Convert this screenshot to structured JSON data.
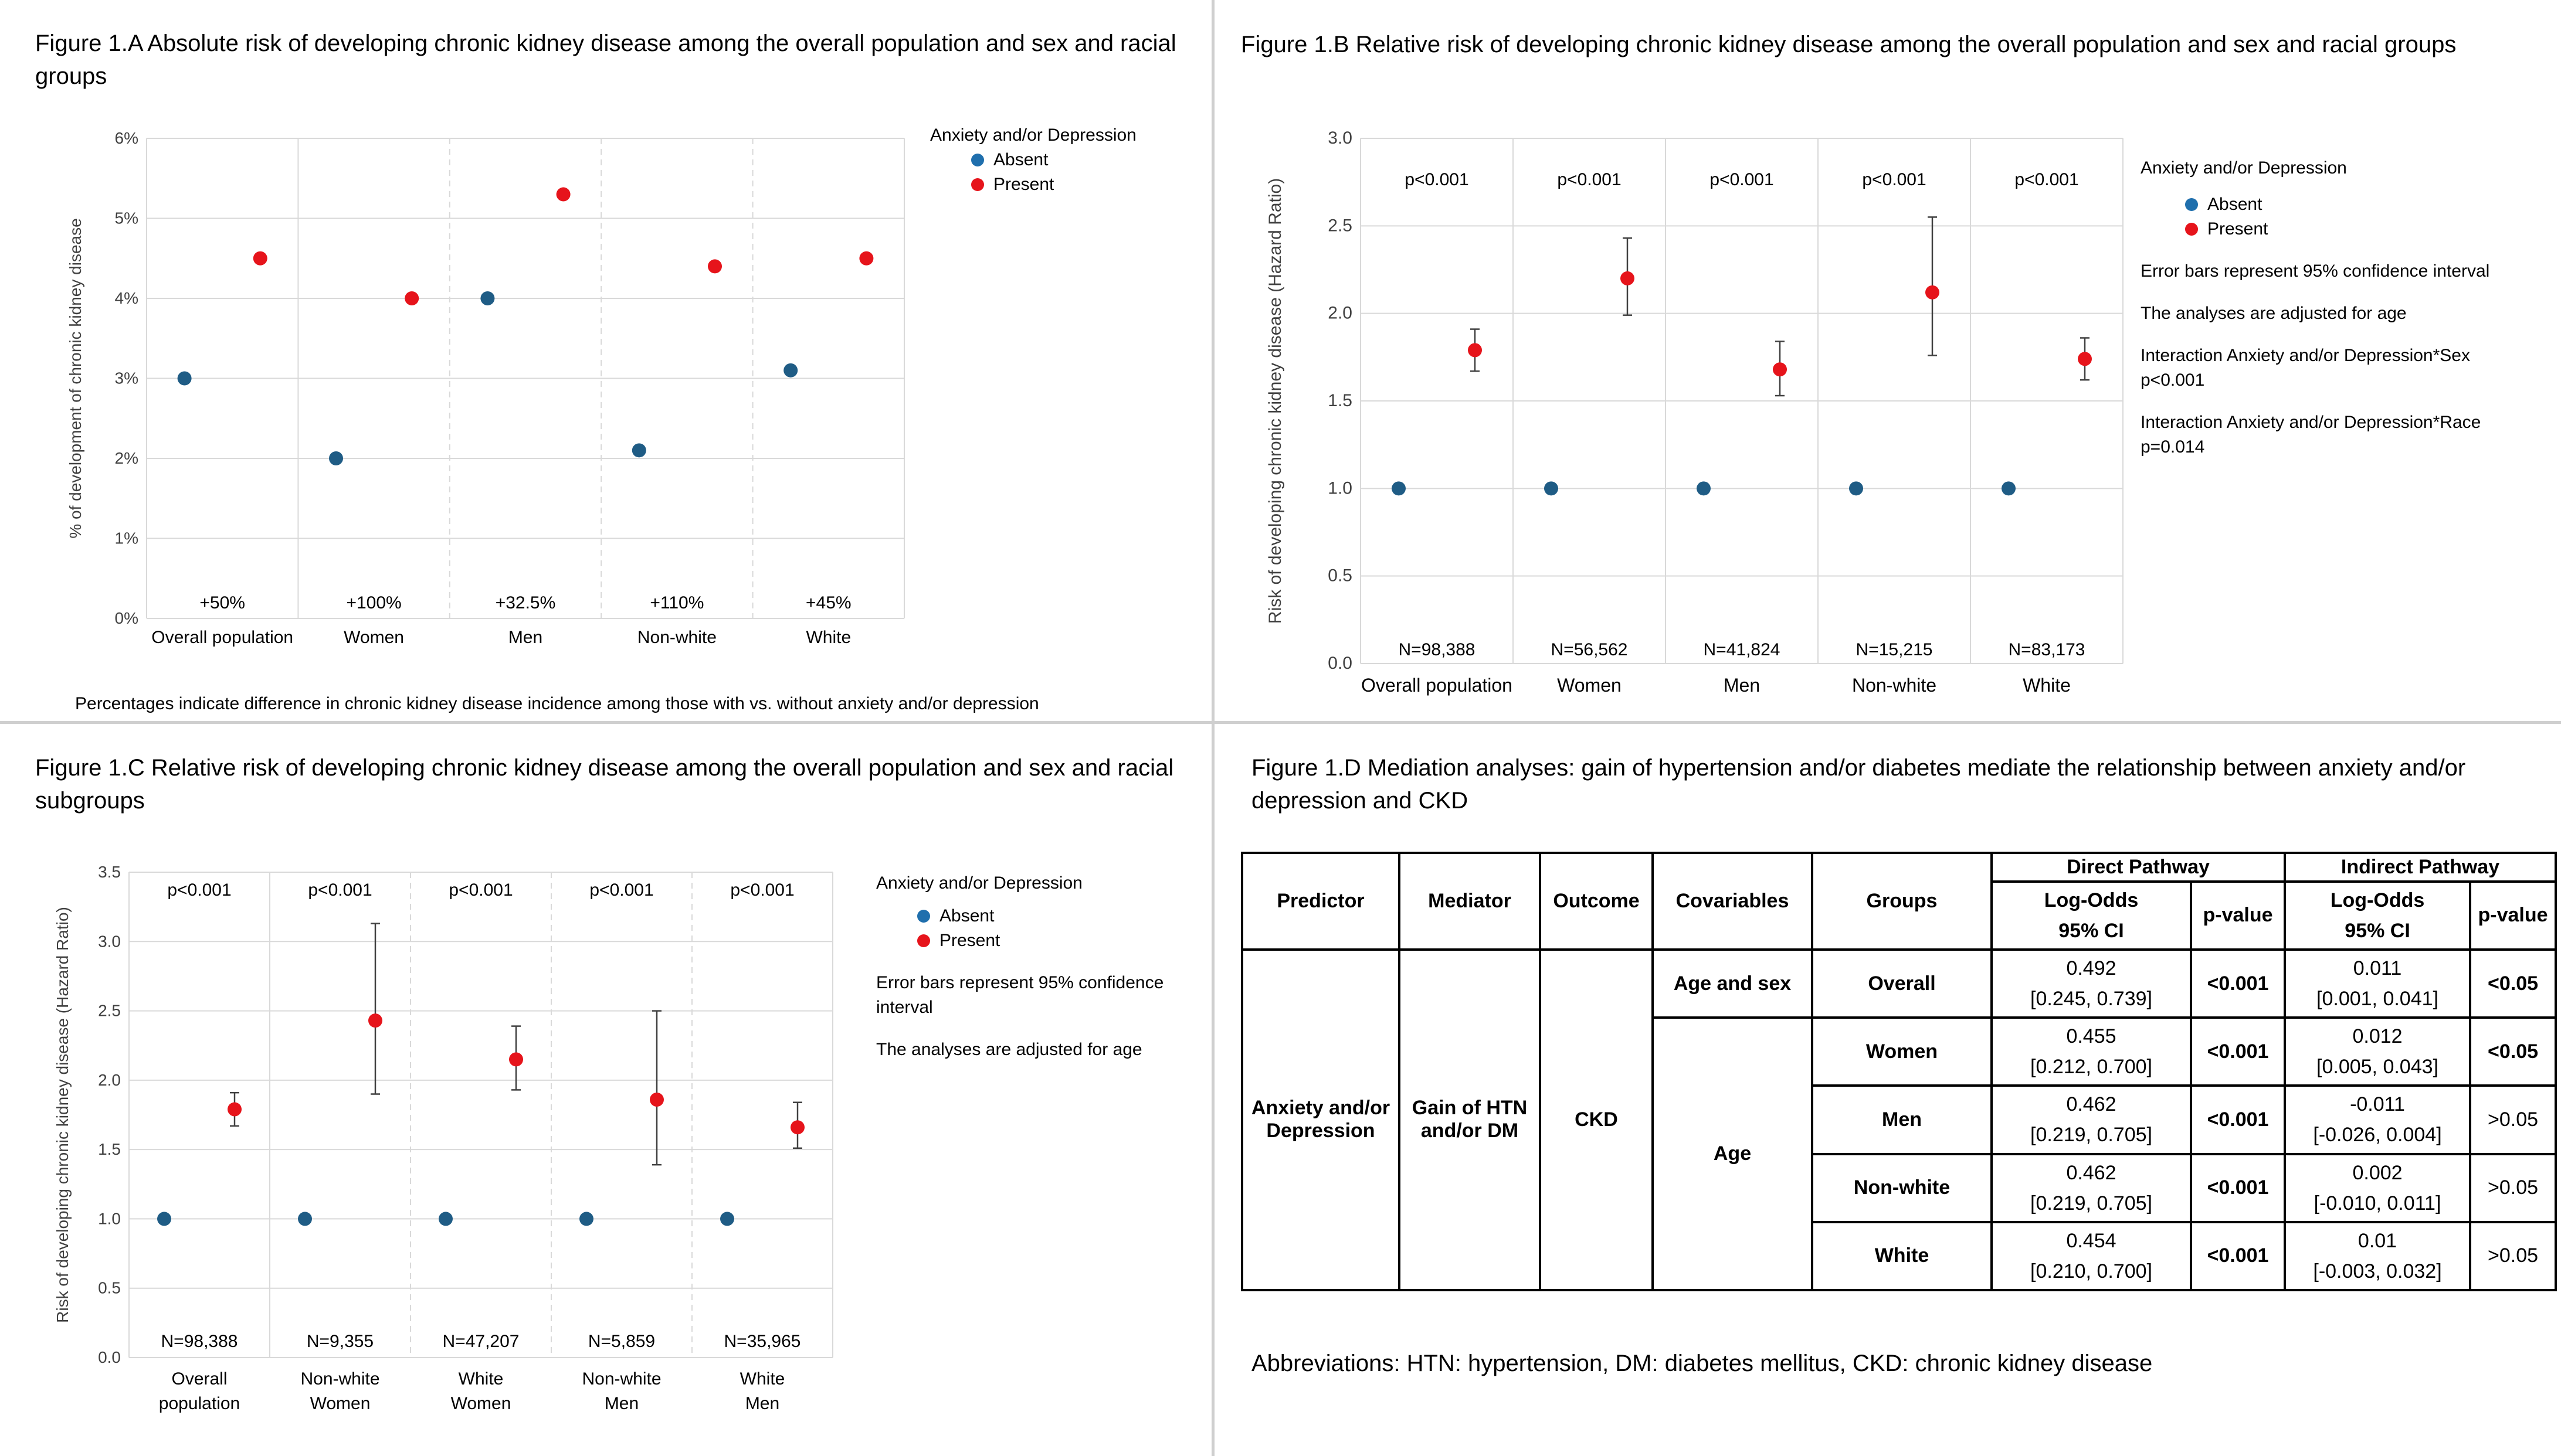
{
  "colors": {
    "absent": "#1f5c85",
    "present": "#e6141b",
    "absent_legend": "#1f6fad",
    "grid": "#d9d9d9",
    "divider": "#cfcfcf"
  },
  "panel_a": {
    "title": "Figure 1.A Absolute risk of developing chronic kidney disease among the overall population and sex and racial groups",
    "legend": {
      "title": "Anxiety and/or Depression",
      "absent": "Absent",
      "present": "Present"
    },
    "footnote": "Percentages indicate difference in chronic kidney disease incidence among those with vs. without anxiety and/or depression"
  },
  "panel_b": {
    "title": "Figure 1.B Relative risk of developing chronic kidney disease among the overall population and sex and racial groups",
    "legend": {
      "title": "Anxiety and/or Depression",
      "absent": "Absent",
      "present": "Present"
    },
    "notes": [
      "Error bars represent 95% confidence interval",
      "The analyses are adjusted for age",
      "Interaction Anxiety and/or Depression*Sex p<0.001",
      "Interaction Anxiety and/or Depression*Race p=0.014"
    ]
  },
  "panel_c": {
    "title": "Figure 1.C Relative risk of developing chronic kidney disease among the overall population and sex and racial subgroups",
    "legend": {
      "title": "Anxiety and/or Depression",
      "absent": "Absent",
      "present": "Present"
    },
    "notes": [
      "Error bars represent 95% confidence interval",
      "The analyses are adjusted for age"
    ]
  },
  "panel_d": {
    "title": "Figure 1.D Mediation analyses: gain of hypertension and/or diabetes mediate the relationship between anxiety and/or depression and CKD",
    "table": {
      "headers": {
        "predictor": "Predictor",
        "mediator": "Mediator",
        "outcome": "Outcome",
        "covariables": "Covariables",
        "groups": "Groups",
        "direct": "Direct Pathway",
        "indirect": "Indirect Pathway",
        "logodds": "Log-Odds",
        "ci": "95% CI",
        "pvalue": "p-value"
      },
      "predictor": "Anxiety and/or Depression",
      "mediator": "Gain of HTN and/or DM",
      "outcome": "CKD",
      "covariables": [
        "Age and sex",
        "Age"
      ],
      "rows": [
        {
          "group": "Overall",
          "direct_est": "0.492",
          "direct_ci": "[0.245, 0.739]",
          "direct_p": "<0.001",
          "indirect_est": "0.011",
          "indirect_ci": "[0.001, 0.041]",
          "indirect_p": "<0.05"
        },
        {
          "group": "Women",
          "direct_est": "0.455",
          "direct_ci": "[0.212, 0.700]",
          "direct_p": "<0.001",
          "indirect_est": "0.012",
          "indirect_ci": "[0.005, 0.043]",
          "indirect_p": "<0.05"
        },
        {
          "group": "Men",
          "direct_est": "0.462",
          "direct_ci": "[0.219, 0.705]",
          "direct_p": "<0.001",
          "indirect_est": "-0.011",
          "indirect_ci": "[-0.026, 0.004]",
          "indirect_p": ">0.05"
        },
        {
          "group": "Non-white",
          "direct_est": "0.462",
          "direct_ci": "[0.219, 0.705]",
          "direct_p": "<0.001",
          "indirect_est": "0.002",
          "indirect_ci": "[-0.010, 0.011]",
          "indirect_p": ">0.05"
        },
        {
          "group": "White",
          "direct_est": "0.454",
          "direct_ci": "[0.210, 0.700]",
          "direct_p": "<0.001",
          "indirect_est": "0.01",
          "indirect_ci": "[-0.003, 0.032]",
          "indirect_p": ">0.05"
        }
      ]
    },
    "abbreviations": "Abbreviations: HTN: hypertension, DM: diabetes mellitus, CKD: chronic kidney disease"
  },
  "chart_data": [
    {
      "id": "1A",
      "type": "scatter",
      "title": "Figure 1.A Absolute risk of developing chronic kidney disease among the overall population and sex and racial groups",
      "ylabel": "% of development of chronic kidney disease",
      "ylim": [
        0,
        6
      ],
      "yticks": [
        "0%",
        "1%",
        "2%",
        "3%",
        "4%",
        "5%",
        "6%"
      ],
      "categories": [
        "Overall population",
        "Women",
        "Men",
        "Non-white",
        "White"
      ],
      "series": [
        {
          "name": "Absent",
          "values": [
            3.0,
            2.0,
            4.0,
            2.1,
            3.1
          ]
        },
        {
          "name": "Present",
          "values": [
            4.5,
            4.0,
            5.3,
            4.4,
            4.5
          ]
        }
      ],
      "annotations": [
        "+50%",
        "+100%",
        "+32.5%",
        "+110%",
        "+45%"
      ],
      "grid": true,
      "legend": "right"
    },
    {
      "id": "1B",
      "type": "scatter",
      "title": "Figure 1.B Relative risk of developing chronic kidney disease among the overall population and sex and racial groups",
      "ylabel": "Risk of developing chronic kidney disease (Hazard Ratio)",
      "ylim": [
        0,
        3
      ],
      "yticks": [
        "0.0",
        "0.5",
        "1.0",
        "1.5",
        "2.0",
        "2.5",
        "3.0"
      ],
      "categories": [
        "Overall population",
        "Women",
        "Men",
        "Non-white",
        "White"
      ],
      "series": [
        {
          "name": "Absent",
          "values": [
            1.0,
            1.0,
            1.0,
            1.0,
            1.0
          ]
        },
        {
          "name": "Present",
          "values": [
            1.79,
            2.2,
            1.68,
            2.12,
            1.74
          ],
          "ci_low": [
            1.67,
            1.99,
            1.53,
            1.76,
            1.62
          ],
          "ci_high": [
            1.91,
            2.43,
            1.84,
            2.55,
            1.86
          ]
        }
      ],
      "pvalues": [
        "p<0.001",
        "p<0.001",
        "p<0.001",
        "p<0.001",
        "p<0.001"
      ],
      "n_labels": [
        "N=98,388",
        "N=56,562",
        "N=41,824",
        "N=15,215",
        "N=83,173"
      ],
      "grid": true,
      "legend": "right"
    },
    {
      "id": "1C",
      "type": "scatter",
      "title": "Figure 1.C Relative risk of developing chronic kidney disease among the overall population and sex and racial subgroups",
      "ylabel": "Risk of developing chronic kidney disease (Hazard Ratio)",
      "ylim": [
        0,
        3.5
      ],
      "yticks": [
        "0.0",
        "0.5",
        "1.0",
        "1.5",
        "2.0",
        "2.5",
        "3.0",
        "3.5"
      ],
      "categories": [
        [
          "Overall",
          "population"
        ],
        [
          "Non-white",
          "Women"
        ],
        [
          "White",
          "Women"
        ],
        [
          "Non-white",
          "Men"
        ],
        [
          "White",
          "Men"
        ]
      ],
      "series": [
        {
          "name": "Absent",
          "values": [
            1.0,
            1.0,
            1.0,
            1.0,
            1.0
          ]
        },
        {
          "name": "Present",
          "values": [
            1.79,
            2.43,
            2.15,
            1.86,
            1.66
          ],
          "ci_low": [
            1.67,
            1.9,
            1.93,
            1.39,
            1.51
          ],
          "ci_high": [
            1.91,
            3.13,
            2.39,
            2.5,
            1.84
          ]
        }
      ],
      "pvalues": [
        "p<0.001",
        "p<0.001",
        "p<0.001",
        "p<0.001",
        "p<0.001"
      ],
      "n_labels": [
        "N=98,388",
        "N=9,355",
        "N=47,207",
        "N=5,859",
        "N=35,965"
      ],
      "grid": true,
      "legend": "right"
    }
  ]
}
